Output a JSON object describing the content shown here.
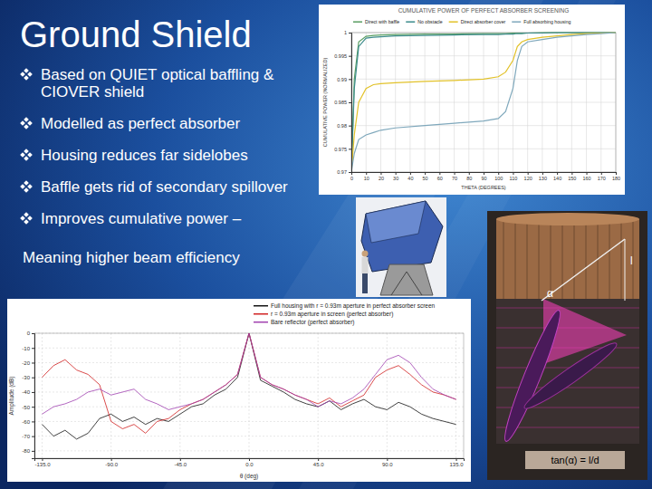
{
  "slide": {
    "title": "Ground Shield",
    "bullets": [
      "Based on QUIET optical baffling & CIOVER shield",
      "Modelled as perfect absorber",
      "Housing reduces far sidelobes",
      "Baffle gets rid of secondary spillover",
      "Improves cumulative power –"
    ],
    "note": "Meaning higher beam efficiency"
  },
  "diagram": {
    "length_label": "l",
    "angle_label": "α",
    "formula": "tan(α) = l/d"
  },
  "chart_data": [
    {
      "type": "line",
      "title": "CUMULATIVE POWER OF PERFECT ABSORBER SCREENING",
      "x_label": "THETA (DEGREES)",
      "y_label": "CUMULATIVE POWER (NORMALIZED)",
      "x": [
        0,
        2,
        5,
        10,
        15,
        20,
        30,
        50,
        70,
        90,
        100,
        105,
        110,
        113,
        116,
        120,
        130,
        140,
        150,
        160,
        170,
        180
      ],
      "series": [
        {
          "name": "Direct with baffle",
          "color": "#5a9e62",
          "values": [
            0.97,
            0.99,
            0.998,
            0.9992,
            0.9994,
            0.9995,
            0.9996,
            0.9997,
            0.9997,
            0.9998,
            0.9998,
            0.9998,
            0.9999,
            0.9999,
            0.9999,
            0.9999,
            1,
            1,
            1,
            1,
            1,
            1
          ]
        },
        {
          "name": "No obstacle",
          "color": "#3c8b8b",
          "values": [
            0.97,
            0.988,
            0.997,
            0.9988,
            0.999,
            0.9991,
            0.9993,
            0.9994,
            0.9995,
            0.9996,
            0.9996,
            0.9997,
            0.9997,
            0.9998,
            0.9998,
            0.9999,
            0.9999,
            1,
            1,
            1,
            1,
            1
          ]
        },
        {
          "name": "Direct absorber cover",
          "color": "#e2c22a",
          "values": [
            0.97,
            0.978,
            0.985,
            0.988,
            0.9888,
            0.989,
            0.9892,
            0.9895,
            0.9897,
            0.99,
            0.9905,
            0.9915,
            0.994,
            0.997,
            0.998,
            0.9985,
            0.999,
            0.9993,
            0.9996,
            0.9998,
            0.9999,
            1
          ]
        },
        {
          "name": "Full absorbing housing",
          "color": "#7fa8bc",
          "values": [
            0.97,
            0.974,
            0.977,
            0.978,
            0.9785,
            0.979,
            0.9795,
            0.98,
            0.9805,
            0.981,
            0.9815,
            0.983,
            0.988,
            0.994,
            0.997,
            0.998,
            0.9985,
            0.999,
            0.9993,
            0.9996,
            0.9998,
            1
          ]
        }
      ],
      "xlim": [
        0,
        180
      ],
      "ylim": [
        0.97,
        1
      ],
      "xticks": [
        0,
        10,
        20,
        30,
        40,
        50,
        60,
        70,
        80,
        90,
        100,
        110,
        120,
        130,
        140,
        150,
        160,
        170,
        180
      ],
      "yticks": [
        0.97,
        0.975,
        0.98,
        0.985,
        0.99,
        0.995,
        1
      ],
      "grid": true,
      "legend": "top"
    },
    {
      "type": "line",
      "x_label": "θ (deg)",
      "y_label": "Amplitude (dB)",
      "x": [
        -135,
        -127.5,
        -120,
        -112.5,
        -105,
        -97.5,
        -90,
        -82.5,
        -75,
        -67.5,
        -60,
        -52.5,
        -45,
        -37.5,
        -30,
        -22.5,
        -15,
        -7.5,
        0,
        7.5,
        15,
        22.5,
        30,
        37.5,
        45,
        52.5,
        60,
        67.5,
        75,
        82.5,
        90,
        97.5,
        105,
        112.5,
        120,
        127.5,
        135
      ],
      "series": [
        {
          "name": "Full housing with r = 0.93m aperture in perfect absorber screen",
          "color": "#111111",
          "values": [
            -62,
            -70,
            -66,
            -72,
            -68,
            -58,
            -55,
            -60,
            -57,
            -62,
            -58,
            -60,
            -55,
            -50,
            -48,
            -42,
            -38,
            -30,
            0,
            -32,
            -36,
            -40,
            -45,
            -48,
            -50,
            -46,
            -52,
            -48,
            -45,
            -50,
            -52,
            -47,
            -50,
            -55,
            -58,
            -60,
            -62
          ]
        },
        {
          "name": "r = 0.93m aperture in screen (perfect absorber)",
          "color": "#d02020",
          "values": [
            -30,
            -22,
            -18,
            -25,
            -28,
            -35,
            -60,
            -65,
            -62,
            -68,
            -60,
            -58,
            -52,
            -48,
            -45,
            -40,
            -35,
            -28,
            0,
            -30,
            -35,
            -38,
            -42,
            -45,
            -48,
            -44,
            -50,
            -46,
            -42,
            -30,
            -25,
            -22,
            -28,
            -35,
            -40,
            -42,
            -45
          ]
        },
        {
          "name": "Bare reflector (perfect absorber)",
          "color": "#a040b0",
          "values": [
            -55,
            -50,
            -48,
            -45,
            -40,
            -38,
            -42,
            -40,
            -38,
            -45,
            -48,
            -52,
            -50,
            -48,
            -45,
            -40,
            -35,
            -28,
            0,
            -30,
            -35,
            -38,
            -42,
            -45,
            -50,
            -46,
            -48,
            -44,
            -38,
            -28,
            -18,
            -15,
            -20,
            -30,
            -38,
            -42,
            -45
          ]
        }
      ],
      "xlim": [
        -140,
        140
      ],
      "ylim": [
        -85,
        0
      ],
      "xticks": [
        {
          "value": -135,
          "label": "-135.0"
        },
        {
          "value": -90,
          "label": "-90.0"
        },
        {
          "value": -45,
          "label": "-45.0"
        },
        {
          "value": 0,
          "label": "0.0"
        },
        {
          "value": 45,
          "label": "45.0"
        },
        {
          "value": 90,
          "label": "90.0"
        },
        {
          "value": 135,
          "label": "135.0"
        }
      ],
      "yticks": [
        -80,
        -70,
        -60,
        -50,
        -40,
        -30,
        -20,
        -10,
        0
      ],
      "grid": true,
      "legend": "top"
    }
  ]
}
